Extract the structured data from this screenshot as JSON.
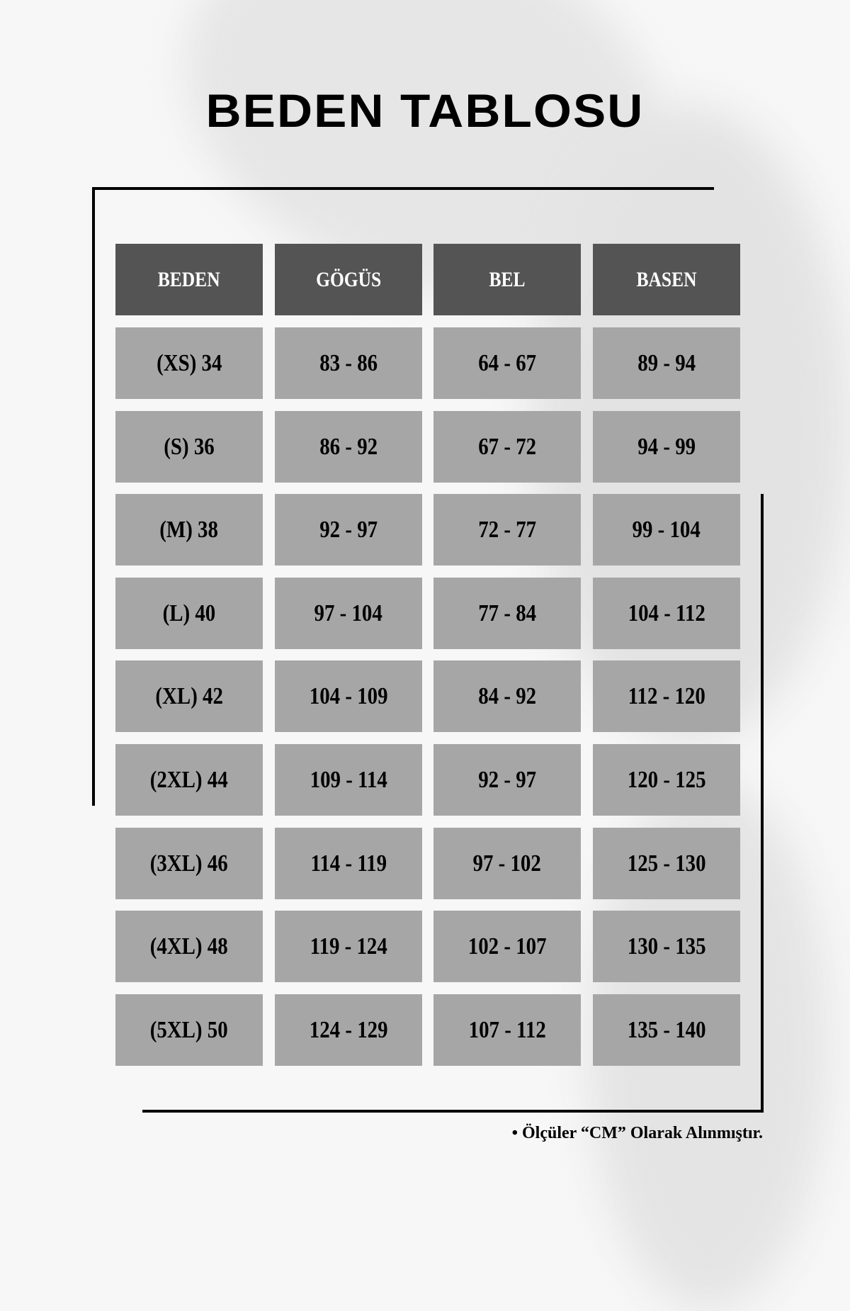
{
  "title": "BEDEN TABLOSU",
  "table": {
    "headers": [
      "BEDEN",
      "GÖGÜS",
      "BEL",
      "BASEN"
    ],
    "rows": [
      [
        "(XS) 34",
        "83 - 86",
        "64 - 67",
        "89 - 94"
      ],
      [
        "(S) 36",
        "86 - 92",
        "67 - 72",
        "94 - 99"
      ],
      [
        "(M) 38",
        "92 - 97",
        "72 - 77",
        "99 - 104"
      ],
      [
        "(L) 40",
        "97 - 104",
        "77 - 84",
        "104 - 112"
      ],
      [
        "(XL) 42",
        "104 - 109",
        "84 - 92",
        "112 - 120"
      ],
      [
        "(2XL) 44",
        "109 - 114",
        "92 - 97",
        "120 - 125"
      ],
      [
        "(3XL) 46",
        "114 - 119",
        "97 - 102",
        "125 - 130"
      ],
      [
        "(4XL) 48",
        "119 - 124",
        "102 - 107",
        "130 - 135"
      ],
      [
        "(5XL) 50",
        "124 - 129",
        "107 - 112",
        "135 - 140"
      ]
    ]
  },
  "footnote": "• Ölçüler “CM” Olarak Alınmıştır.",
  "colors": {
    "header_bg": "#545454",
    "cell_bg": "#a6a6a6",
    "background": "#f7f7f7"
  }
}
